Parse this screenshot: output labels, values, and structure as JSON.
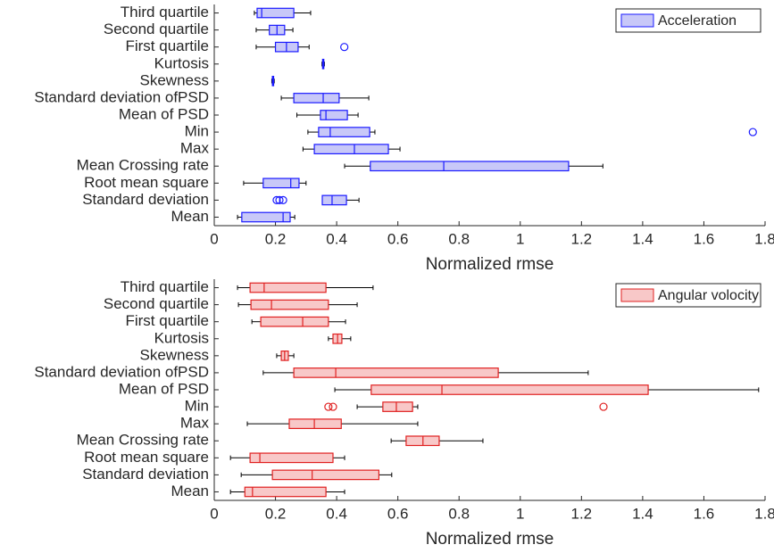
{
  "chart_data": [
    {
      "type": "box",
      "orientation": "horizontal",
      "xlabel": "Normalized rmse",
      "legend": "upper right",
      "categories": [
        "Third quartile",
        "Second quartile",
        "First quartile",
        "Kurtosis",
        "Skewness",
        "Standard deviation ofPSD",
        "Mean of PSD",
        "Min",
        "Max",
        "Mean Crossing rate",
        "Root mean square",
        "Standard deviation",
        "Mean"
      ],
      "xlim": [
        0,
        1.8
      ],
      "xticks": [
        0,
        0.2,
        0.4,
        0.6,
        0.8,
        1,
        1.2,
        1.4,
        1.6,
        1.8
      ],
      "series": [
        {
          "name": "Acceleration",
          "color": "#1a1aff",
          "fill": "#c8c8f8",
          "boxes": [
            {
              "whislo": 0.131,
              "q1": 0.14,
              "med": 0.155,
              "q3": 0.26,
              "whishi": 0.315
            },
            {
              "whislo": 0.137,
              "q1": 0.18,
              "med": 0.205,
              "q3": 0.23,
              "whishi": 0.257
            },
            {
              "whislo": 0.137,
              "q1": 0.2,
              "med": 0.236,
              "q3": 0.274,
              "whishi": 0.31,
              "fliers": [
                0.425
              ]
            },
            {
              "whislo": 0.352,
              "q1": 0.354,
              "med": 0.356,
              "q3": 0.358,
              "whishi": 0.36
            },
            {
              "whislo": 0.188,
              "q1": 0.19,
              "med": 0.192,
              "q3": 0.194,
              "whishi": 0.196
            },
            {
              "whislo": 0.219,
              "q1": 0.26,
              "med": 0.356,
              "q3": 0.408,
              "whishi": 0.505
            },
            {
              "whislo": 0.27,
              "q1": 0.347,
              "med": 0.365,
              "q3": 0.435,
              "whishi": 0.47
            },
            {
              "whislo": 0.306,
              "q1": 0.341,
              "med": 0.379,
              "q3": 0.508,
              "whishi": 0.525,
              "fliers": [
                1.76
              ]
            },
            {
              "whislo": 0.29,
              "q1": 0.327,
              "med": 0.458,
              "q3": 0.569,
              "whishi": 0.607
            },
            {
              "whislo": 0.426,
              "q1": 0.51,
              "med": 0.75,
              "q3": 1.158,
              "whishi": 1.27
            },
            {
              "whislo": 0.096,
              "q1": 0.16,
              "med": 0.25,
              "q3": 0.277,
              "whishi": 0.3
            },
            {
              "whislo": 0.353,
              "q1": 0.353,
              "med": 0.385,
              "q3": 0.432,
              "whishi": 0.473,
              "fliers": [
                0.204,
                0.213,
                0.225
              ]
            },
            {
              "whislo": 0.076,
              "q1": 0.09,
              "med": 0.225,
              "q3": 0.248,
              "whishi": 0.263
            }
          ]
        }
      ]
    },
    {
      "type": "box",
      "orientation": "horizontal",
      "xlabel": "Normalized rmse",
      "legend": "upper right",
      "categories": [
        "Third quartile",
        "Second quartile",
        "First quartile",
        "Kurtosis",
        "Skewness",
        "Standard deviation ofPSD",
        "Mean of PSD",
        "Min",
        "Max",
        "Mean Crossing rate",
        "Root mean square",
        "Standard deviation",
        "Mean"
      ],
      "xlim": [
        0,
        1.8
      ],
      "xticks": [
        0,
        0.2,
        0.4,
        0.6,
        0.8,
        1,
        1.2,
        1.4,
        1.6,
        1.8
      ],
      "series": [
        {
          "name": "Angular volocity",
          "color": "#e02020",
          "fill": "#f8c8c8",
          "boxes": [
            {
              "whislo": 0.076,
              "q1": 0.117,
              "med": 0.163,
              "q3": 0.365,
              "whishi": 0.519
            },
            {
              "whislo": 0.079,
              "q1": 0.12,
              "med": 0.187,
              "q3": 0.373,
              "whishi": 0.467
            },
            {
              "whislo": 0.123,
              "q1": 0.152,
              "med": 0.289,
              "q3": 0.373,
              "whishi": 0.429
            },
            {
              "whislo": 0.373,
              "q1": 0.388,
              "med": 0.403,
              "q3": 0.417,
              "whishi": 0.446
            },
            {
              "whislo": 0.204,
              "q1": 0.219,
              "med": 0.23,
              "q3": 0.242,
              "whishi": 0.26
            },
            {
              "whislo": 0.16,
              "q1": 0.26,
              "med": 0.397,
              "q3": 0.928,
              "whishi": 1.222
            },
            {
              "whislo": 0.394,
              "q1": 0.513,
              "med": 0.744,
              "q3": 1.418,
              "whishi": 1.779
            },
            {
              "whislo": 0.467,
              "q1": 0.551,
              "med": 0.595,
              "q3": 0.648,
              "whishi": 0.665,
              "fliers": [
                0.373,
                0.388,
                1.272
              ]
            },
            {
              "whislo": 0.108,
              "q1": 0.245,
              "med": 0.327,
              "q3": 0.415,
              "whishi": 0.665
            },
            {
              "whislo": 0.578,
              "q1": 0.627,
              "med": 0.682,
              "q3": 0.735,
              "whishi": 0.878
            },
            {
              "whislo": 0.053,
              "q1": 0.117,
              "med": 0.149,
              "q3": 0.388,
              "whishi": 0.426
            },
            {
              "whislo": 0.088,
              "q1": 0.19,
              "med": 0.32,
              "q3": 0.538,
              "whishi": 0.58
            },
            {
              "whislo": 0.053,
              "q1": 0.1,
              "med": 0.125,
              "q3": 0.365,
              "whishi": 0.426
            }
          ]
        }
      ]
    }
  ]
}
